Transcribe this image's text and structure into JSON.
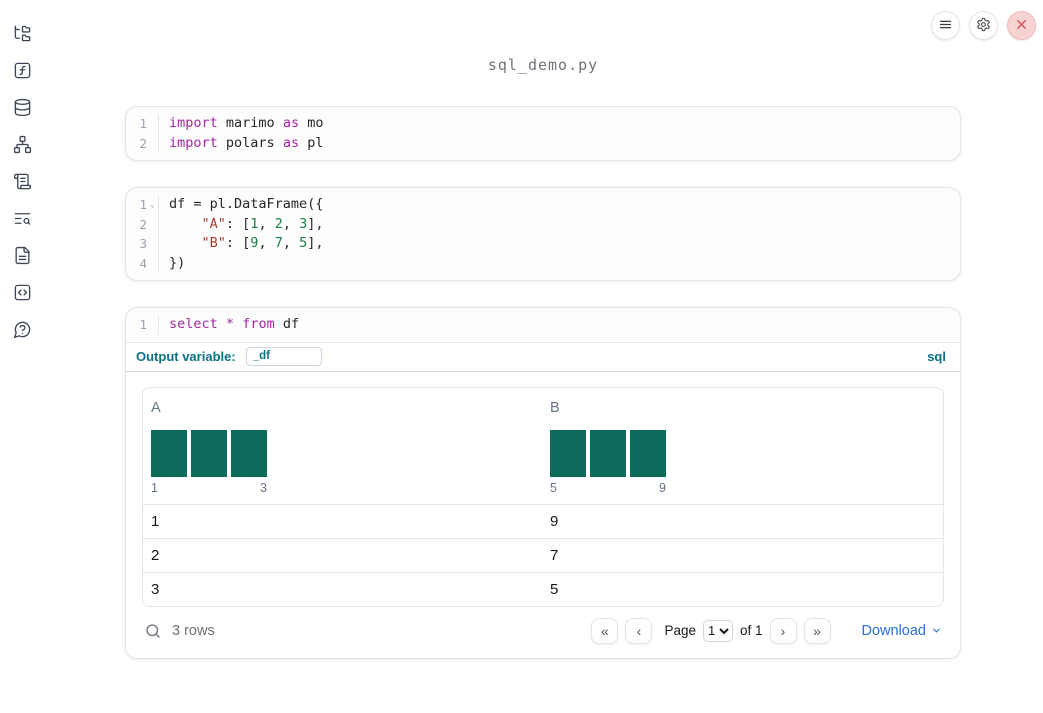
{
  "header": {
    "title": "sql_demo.py",
    "controls": [
      {
        "name": "menu-button",
        "icon": "hamburger-icon"
      },
      {
        "name": "settings-button",
        "icon": "gear-icon"
      },
      {
        "name": "shutdown-button",
        "icon": "close-icon"
      }
    ]
  },
  "sidebar": {
    "icons": [
      "file-tree-icon",
      "function-icon",
      "database-icon",
      "dependency-graph-icon",
      "scroll-icon",
      "search-list-icon",
      "document-icon",
      "snippets-icon",
      "help-icon"
    ]
  },
  "cells": [
    {
      "type": "python",
      "lines": [
        {
          "num": "1",
          "fold": false,
          "tokens": [
            [
              "kw",
              "import"
            ],
            [
              "pl",
              " marimo "
            ],
            [
              "kw",
              "as"
            ],
            [
              "pl",
              " mo"
            ]
          ]
        },
        {
          "num": "2",
          "fold": false,
          "tokens": [
            [
              "kw",
              "import"
            ],
            [
              "pl",
              " polars "
            ],
            [
              "kw",
              "as"
            ],
            [
              "pl",
              " pl"
            ]
          ]
        }
      ]
    },
    {
      "type": "python",
      "lines": [
        {
          "num": "1",
          "fold": true,
          "tokens": [
            [
              "pl",
              "df = pl.DataFrame({"
            ]
          ]
        },
        {
          "num": "2",
          "fold": false,
          "tokens": [
            [
              "pl",
              "    "
            ],
            [
              "str",
              "\"A\""
            ],
            [
              "pl",
              ": ["
            ],
            [
              "num",
              "1"
            ],
            [
              "pl",
              ", "
            ],
            [
              "num",
              "2"
            ],
            [
              "pl",
              ", "
            ],
            [
              "num",
              "3"
            ],
            [
              "pl",
              "],"
            ]
          ]
        },
        {
          "num": "3",
          "fold": false,
          "tokens": [
            [
              "pl",
              "    "
            ],
            [
              "str",
              "\"B\""
            ],
            [
              "pl",
              ": ["
            ],
            [
              "num",
              "9"
            ],
            [
              "pl",
              ", "
            ],
            [
              "num",
              "7"
            ],
            [
              "pl",
              ", "
            ],
            [
              "num",
              "5"
            ],
            [
              "pl",
              "],"
            ]
          ]
        },
        {
          "num": "4",
          "fold": false,
          "tokens": [
            [
              "pl",
              "})"
            ]
          ]
        }
      ]
    },
    {
      "type": "sql",
      "lines": [
        {
          "num": "1",
          "fold": false,
          "tokens": [
            [
              "kw",
              "select"
            ],
            [
              "pl",
              " "
            ],
            [
              "kw",
              "*"
            ],
            [
              "pl",
              " "
            ],
            [
              "kw",
              "from"
            ],
            [
              "pl",
              " df"
            ]
          ]
        }
      ]
    }
  ],
  "sql_cell": {
    "output_variable_label": "Output variable:",
    "output_variable_value": "_df",
    "language_badge": "sql"
  },
  "table": {
    "columns": [
      {
        "name": "A",
        "hist": {
          "values": [
            1,
            1,
            1
          ],
          "x_min": "1",
          "x_max": "3"
        }
      },
      {
        "name": "B",
        "hist": {
          "values": [
            1,
            1,
            1
          ],
          "x_min": "5",
          "x_max": "9"
        }
      }
    ],
    "rows": [
      [
        "1",
        "9"
      ],
      [
        "2",
        "7"
      ],
      [
        "3",
        "5"
      ]
    ],
    "footer": {
      "row_count": "3 rows",
      "page_label": "Page",
      "page_value": "1",
      "of_label": "of 1",
      "download_label": "Download",
      "pager_glyphs": {
        "first": "«",
        "prev": "‹",
        "next": "›",
        "last": "»"
      }
    }
  },
  "colors": {
    "keyword": "#a626a4",
    "string": "#aa3a30",
    "number": "#1c7d45",
    "hist_bar": "#0e6a5b",
    "accent_teal": "#0c7086",
    "link_blue": "#2970d9"
  }
}
